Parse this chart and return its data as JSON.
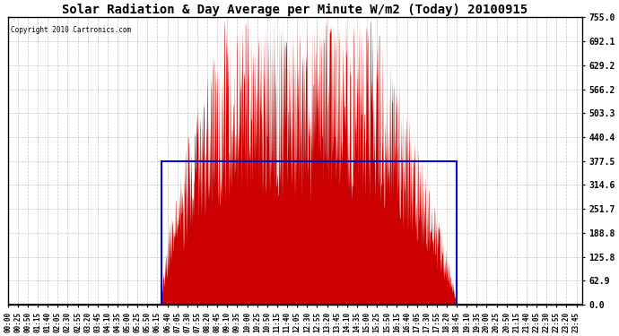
{
  "title": "Solar Radiation & Day Average per Minute W/m2 (Today) 20100915",
  "copyright_text": "Copyright 2010 Cartronics.com",
  "y_ticks": [
    0.0,
    62.9,
    125.8,
    188.8,
    251.7,
    314.6,
    377.5,
    440.4,
    503.3,
    566.2,
    629.2,
    692.1,
    755.0
  ],
  "ylim_min": 0.0,
  "ylim_max": 755.0,
  "background_color": "#ffffff",
  "grid_color": "#aaaaaa",
  "bar_color": "#cc0000",
  "avg_line_color": "#0000cc",
  "avg_value": 377.5,
  "sunrise_min": 385,
  "sunset_min": 1124,
  "x_tick_interval": 25,
  "total_minutes": 1440,
  "figwidth": 6.9,
  "figheight": 3.75,
  "dpi": 100
}
